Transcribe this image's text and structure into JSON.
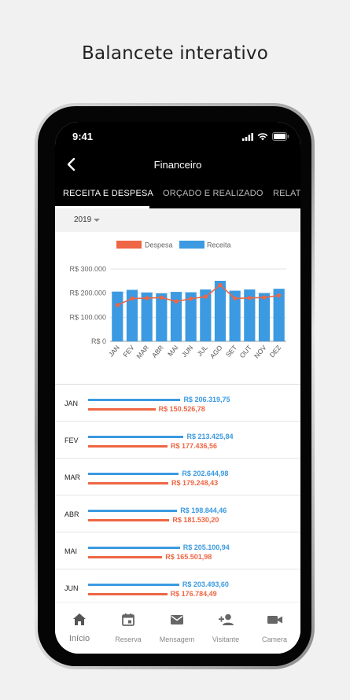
{
  "headline": "Balancete interativo",
  "status": {
    "time": "9:41"
  },
  "nav": {
    "title": "Financeiro"
  },
  "tabs": [
    {
      "label": "RECEITA E DESPESA"
    },
    {
      "label": "ORÇADO E REALIZADO"
    },
    {
      "label": "RELATO"
    }
  ],
  "year": {
    "selected": "2019"
  },
  "colors": {
    "receita": "#3b9ae1",
    "despesa": "#ee6644"
  },
  "chart_data": {
    "type": "bar",
    "legend": [
      "Despesa",
      "Receita"
    ],
    "legend_position": "top",
    "categories": [
      "JAN",
      "FEV",
      "MAR",
      "ABR",
      "MAI",
      "JUN",
      "JUL",
      "AGO",
      "SET",
      "OUT",
      "NOV",
      "DEZ"
    ],
    "series": [
      {
        "name": "Receita",
        "type": "bar",
        "values": [
          206320,
          213426,
          202645,
          198844,
          205101,
          203494,
          215000,
          251000,
          210000,
          215000,
          200000,
          218000
        ]
      },
      {
        "name": "Despesa",
        "type": "line",
        "values": [
          150527,
          177437,
          179248,
          181530,
          165502,
          176784,
          185000,
          233000,
          178000,
          180000,
          182000,
          190000
        ]
      }
    ],
    "yticks": [
      "R$ 0",
      "R$ 100.000",
      "R$ 200.000",
      "R$ 300.000"
    ],
    "ylim": [
      0,
      300000
    ],
    "grid": true
  },
  "monthly": [
    {
      "label": "JAN",
      "receita": 206320,
      "despesa": 150527,
      "receita_text": "R$ 206.319,75",
      "despesa_text": "R$ 150.526,78"
    },
    {
      "label": "FEV",
      "receita": 213426,
      "despesa": 177437,
      "receita_text": "R$ 213.425,84",
      "despesa_text": "R$ 177.436,56"
    },
    {
      "label": "MAR",
      "receita": 202645,
      "despesa": 179248,
      "receita_text": "R$ 202.644,98",
      "despesa_text": "R$ 179.248,43"
    },
    {
      "label": "ABR",
      "receita": 198844,
      "despesa": 181530,
      "receita_text": "R$ 198.844,46",
      "despesa_text": "R$ 181.530,20"
    },
    {
      "label": "MAI",
      "receita": 205101,
      "despesa": 165502,
      "receita_text": "R$ 205.100,94",
      "despesa_text": "R$ 165.501,98"
    },
    {
      "label": "JUN",
      "receita": 203494,
      "despesa": 176784,
      "receita_text": "R$ 203.493,60",
      "despesa_text": "R$ 176.784,49"
    }
  ],
  "bottom_nav": [
    {
      "label": "Início",
      "icon": "home-icon"
    },
    {
      "label": "Reserva",
      "icon": "calendar-icon"
    },
    {
      "label": "Mensagem",
      "icon": "mail-icon"
    },
    {
      "label": "Visitante",
      "icon": "add-person-icon"
    },
    {
      "label": "Camera",
      "icon": "video-camera-icon"
    }
  ]
}
